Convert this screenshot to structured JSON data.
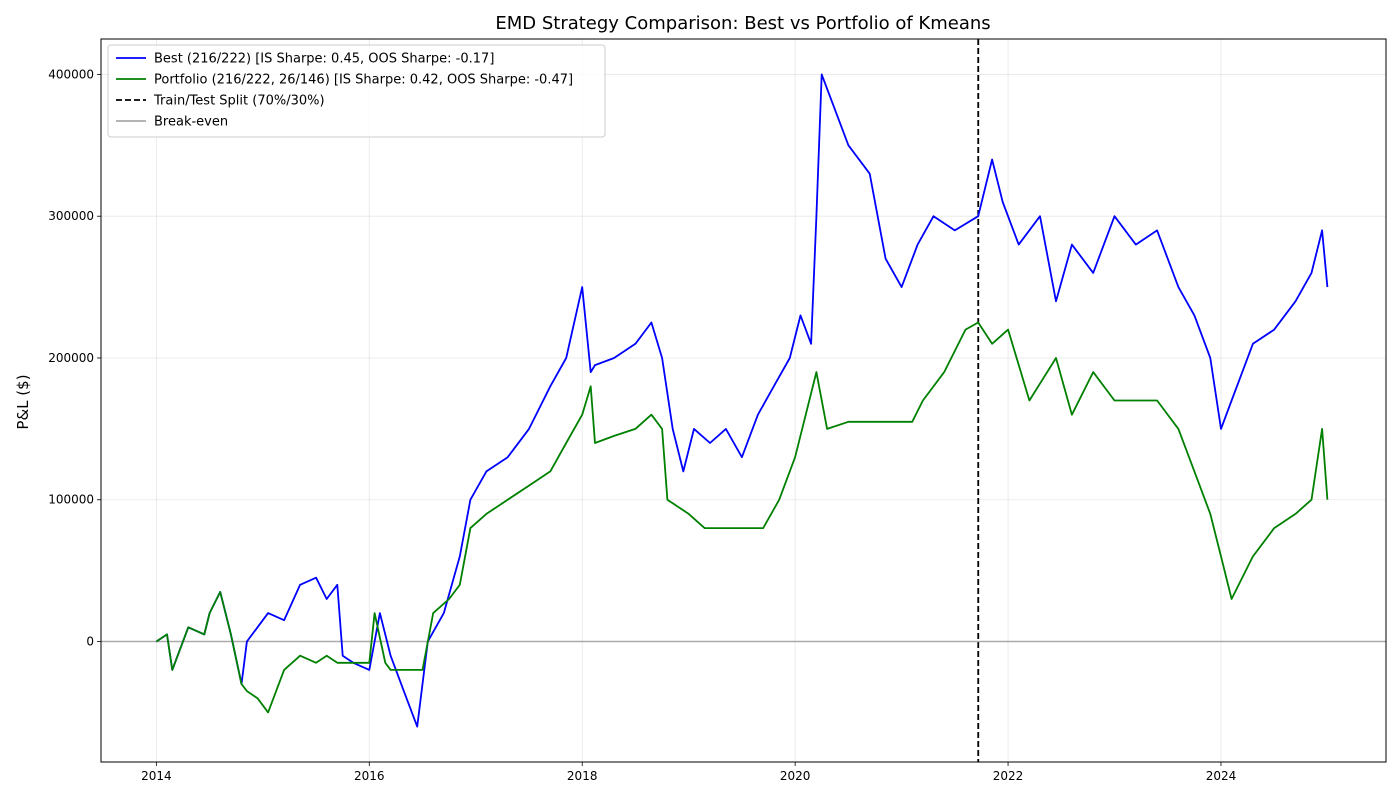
{
  "chart_data": {
    "type": "line",
    "title": "EMD Strategy Comparison: Best vs Portfolio of Kmeans",
    "xlabel": "",
    "ylabel": "P&L ($)",
    "xlim": [
      2013.48,
      2025.55
    ],
    "ylim": [
      -85000,
      425000
    ],
    "x_ticks": [
      2014,
      2016,
      2018,
      2020,
      2022,
      2024
    ],
    "x_tick_labels": [
      "2014",
      "2016",
      "2018",
      "2020",
      "2022",
      "2024"
    ],
    "y_ticks": [
      0,
      100000,
      200000,
      300000,
      400000
    ],
    "y_tick_labels": [
      "0",
      "100000",
      "200000",
      "300000",
      "400000"
    ],
    "grid": true,
    "legend_position": "top-left",
    "series": [
      {
        "name": "Best (216/222) [IS Sharpe: 0.45, OOS Sharpe: -0.17]",
        "color": "#0000ff",
        "line_style": "solid",
        "x": [
          2014.0,
          2014.1,
          2014.15,
          2014.3,
          2014.45,
          2014.5,
          2014.6,
          2014.7,
          2014.8,
          2014.85,
          2014.95,
          2015.05,
          2015.2,
          2015.35,
          2015.5,
          2015.6,
          2015.7,
          2015.75,
          2015.85,
          2016.0,
          2016.1,
          2016.2,
          2016.35,
          2016.45,
          2016.55,
          2016.7,
          2016.85,
          2016.95,
          2017.1,
          2017.3,
          2017.5,
          2017.7,
          2017.85,
          2018.0,
          2018.08,
          2018.12,
          2018.3,
          2018.5,
          2018.65,
          2018.75,
          2018.85,
          2018.95,
          2019.05,
          2019.2,
          2019.35,
          2019.5,
          2019.65,
          2019.8,
          2019.95,
          2020.05,
          2020.15,
          2020.2,
          2020.25,
          2020.35,
          2020.5,
          2020.7,
          2020.85,
          2021.0,
          2021.15,
          2021.3,
          2021.5,
          2021.72,
          2021.85,
          2021.95,
          2022.1,
          2022.3,
          2022.45,
          2022.6,
          2022.8,
          2023.0,
          2023.2,
          2023.4,
          2023.6,
          2023.75,
          2023.9,
          2024.0,
          2024.1,
          2024.3,
          2024.5,
          2024.7,
          2024.85,
          2024.95,
          2025.0
        ],
        "y": [
          0,
          5000,
          -20000,
          10000,
          5000,
          20000,
          35000,
          5000,
          -30000,
          0,
          10000,
          20000,
          15000,
          40000,
          45000,
          30000,
          40000,
          -10000,
          -15000,
          -20000,
          20000,
          -10000,
          -40000,
          -60000,
          0,
          20000,
          60000,
          100000,
          120000,
          130000,
          150000,
          180000,
          200000,
          250000,
          190000,
          195000,
          200000,
          210000,
          225000,
          200000,
          150000,
          120000,
          150000,
          140000,
          150000,
          130000,
          160000,
          180000,
          200000,
          230000,
          210000,
          300000,
          400000,
          380000,
          350000,
          330000,
          270000,
          250000,
          280000,
          300000,
          290000,
          300000,
          340000,
          310000,
          280000,
          300000,
          240000,
          280000,
          260000,
          300000,
          280000,
          290000,
          250000,
          230000,
          200000,
          150000,
          170000,
          210000,
          220000,
          240000,
          260000,
          290000,
          250000
        ]
      },
      {
        "name": "Portfolio (216/222, 26/146) [IS Sharpe: 0.42, OOS Sharpe: -0.47]",
        "color": "#008000",
        "line_style": "solid",
        "x": [
          2014.0,
          2014.1,
          2014.15,
          2014.3,
          2014.45,
          2014.5,
          2014.6,
          2014.7,
          2014.8,
          2014.85,
          2014.95,
          2015.05,
          2015.2,
          2015.35,
          2015.5,
          2015.6,
          2015.7,
          2016.0,
          2016.05,
          2016.15,
          2016.2,
          2016.3,
          2016.5,
          2016.6,
          2016.75,
          2016.85,
          2016.95,
          2017.1,
          2017.3,
          2017.5,
          2017.7,
          2017.85,
          2018.0,
          2018.08,
          2018.12,
          2018.3,
          2018.5,
          2018.65,
          2018.75,
          2018.8,
          2019.0,
          2019.15,
          2019.5,
          2019.7,
          2019.85,
          2020.0,
          2020.2,
          2020.3,
          2020.5,
          2021.1,
          2021.2,
          2021.4,
          2021.6,
          2021.72,
          2021.85,
          2022.0,
          2022.2,
          2022.45,
          2022.6,
          2022.8,
          2023.0,
          2023.4,
          2023.6,
          2023.75,
          2023.9,
          2024.0,
          2024.1,
          2024.3,
          2024.5,
          2024.7,
          2024.85,
          2024.95,
          2025.0
        ],
        "y": [
          0,
          5000,
          -20000,
          10000,
          5000,
          20000,
          35000,
          5000,
          -30000,
          -35000,
          -40000,
          -50000,
          -20000,
          -10000,
          -15000,
          -10000,
          -15000,
          -15000,
          20000,
          -15000,
          -20000,
          -20000,
          -20000,
          20000,
          30000,
          40000,
          80000,
          90000,
          100000,
          110000,
          120000,
          140000,
          160000,
          180000,
          140000,
          145000,
          150000,
          160000,
          150000,
          100000,
          90000,
          80000,
          80000,
          80000,
          100000,
          130000,
          190000,
          150000,
          155000,
          155000,
          170000,
          190000,
          220000,
          225000,
          210000,
          220000,
          170000,
          200000,
          160000,
          190000,
          170000,
          170000,
          150000,
          120000,
          90000,
          60000,
          30000,
          60000,
          80000,
          90000,
          100000,
          150000,
          100000
        ]
      },
      {
        "name": "Train/Test Split (70%/30%)",
        "color": "#000000",
        "line_style": "dashed",
        "x_value": 2021.72
      },
      {
        "name": "Break-even",
        "color": "#aaaaaa",
        "line_style": "solid",
        "y_value": 0
      }
    ]
  }
}
